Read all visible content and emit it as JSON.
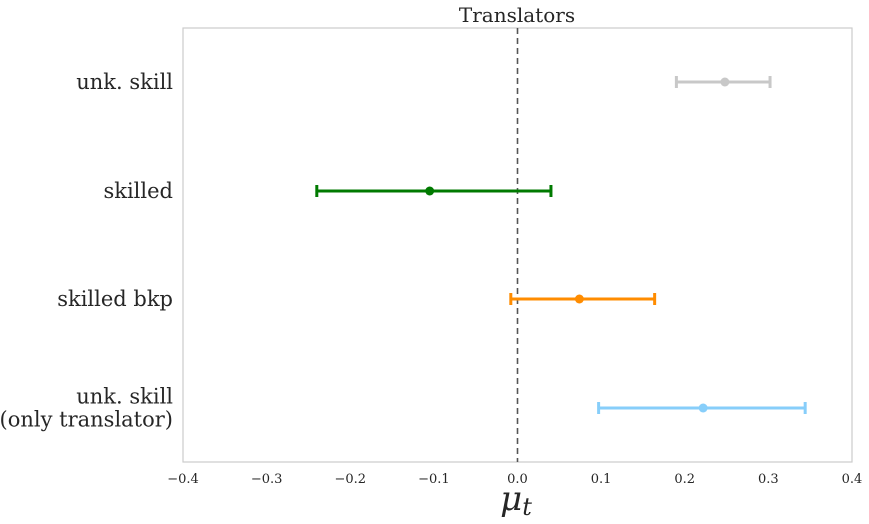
{
  "chart_data": {
    "type": "errorbar",
    "title": "Translators",
    "xlabel_main": "μ",
    "xlabel_sub": "t",
    "xlim": [
      -0.4,
      0.4
    ],
    "xticks": [
      -0.4,
      -0.3,
      -0.2,
      -0.1,
      0.0,
      0.1,
      0.2,
      0.3,
      0.4
    ],
    "xtick_labels": [
      "−0.4",
      "−0.3",
      "−0.2",
      "−0.1",
      "0.0",
      "0.1",
      "0.2",
      "0.3",
      "0.4"
    ],
    "reference_line": {
      "x": 0.0,
      "style": "dashed",
      "color": "#555555"
    },
    "grid": false,
    "categories": [
      {
        "lines": [
          "unk. skill"
        ]
      },
      {
        "lines": [
          "skilled"
        ]
      },
      {
        "lines": [
          "skilled bkp"
        ]
      },
      {
        "lines": [
          "unk. skill",
          "(only translator)"
        ]
      }
    ],
    "points": [
      {
        "mean": 0.248,
        "low": 0.19,
        "high": 0.302,
        "color": "#c8c8c8"
      },
      {
        "mean": -0.105,
        "low": -0.24,
        "high": 0.04,
        "color": "#007a00"
      },
      {
        "mean": 0.074,
        "low": -0.008,
        "high": 0.164,
        "color": "#ff8c00"
      },
      {
        "mean": 0.222,
        "low": 0.097,
        "high": 0.344,
        "color": "#87cefa"
      }
    ]
  }
}
